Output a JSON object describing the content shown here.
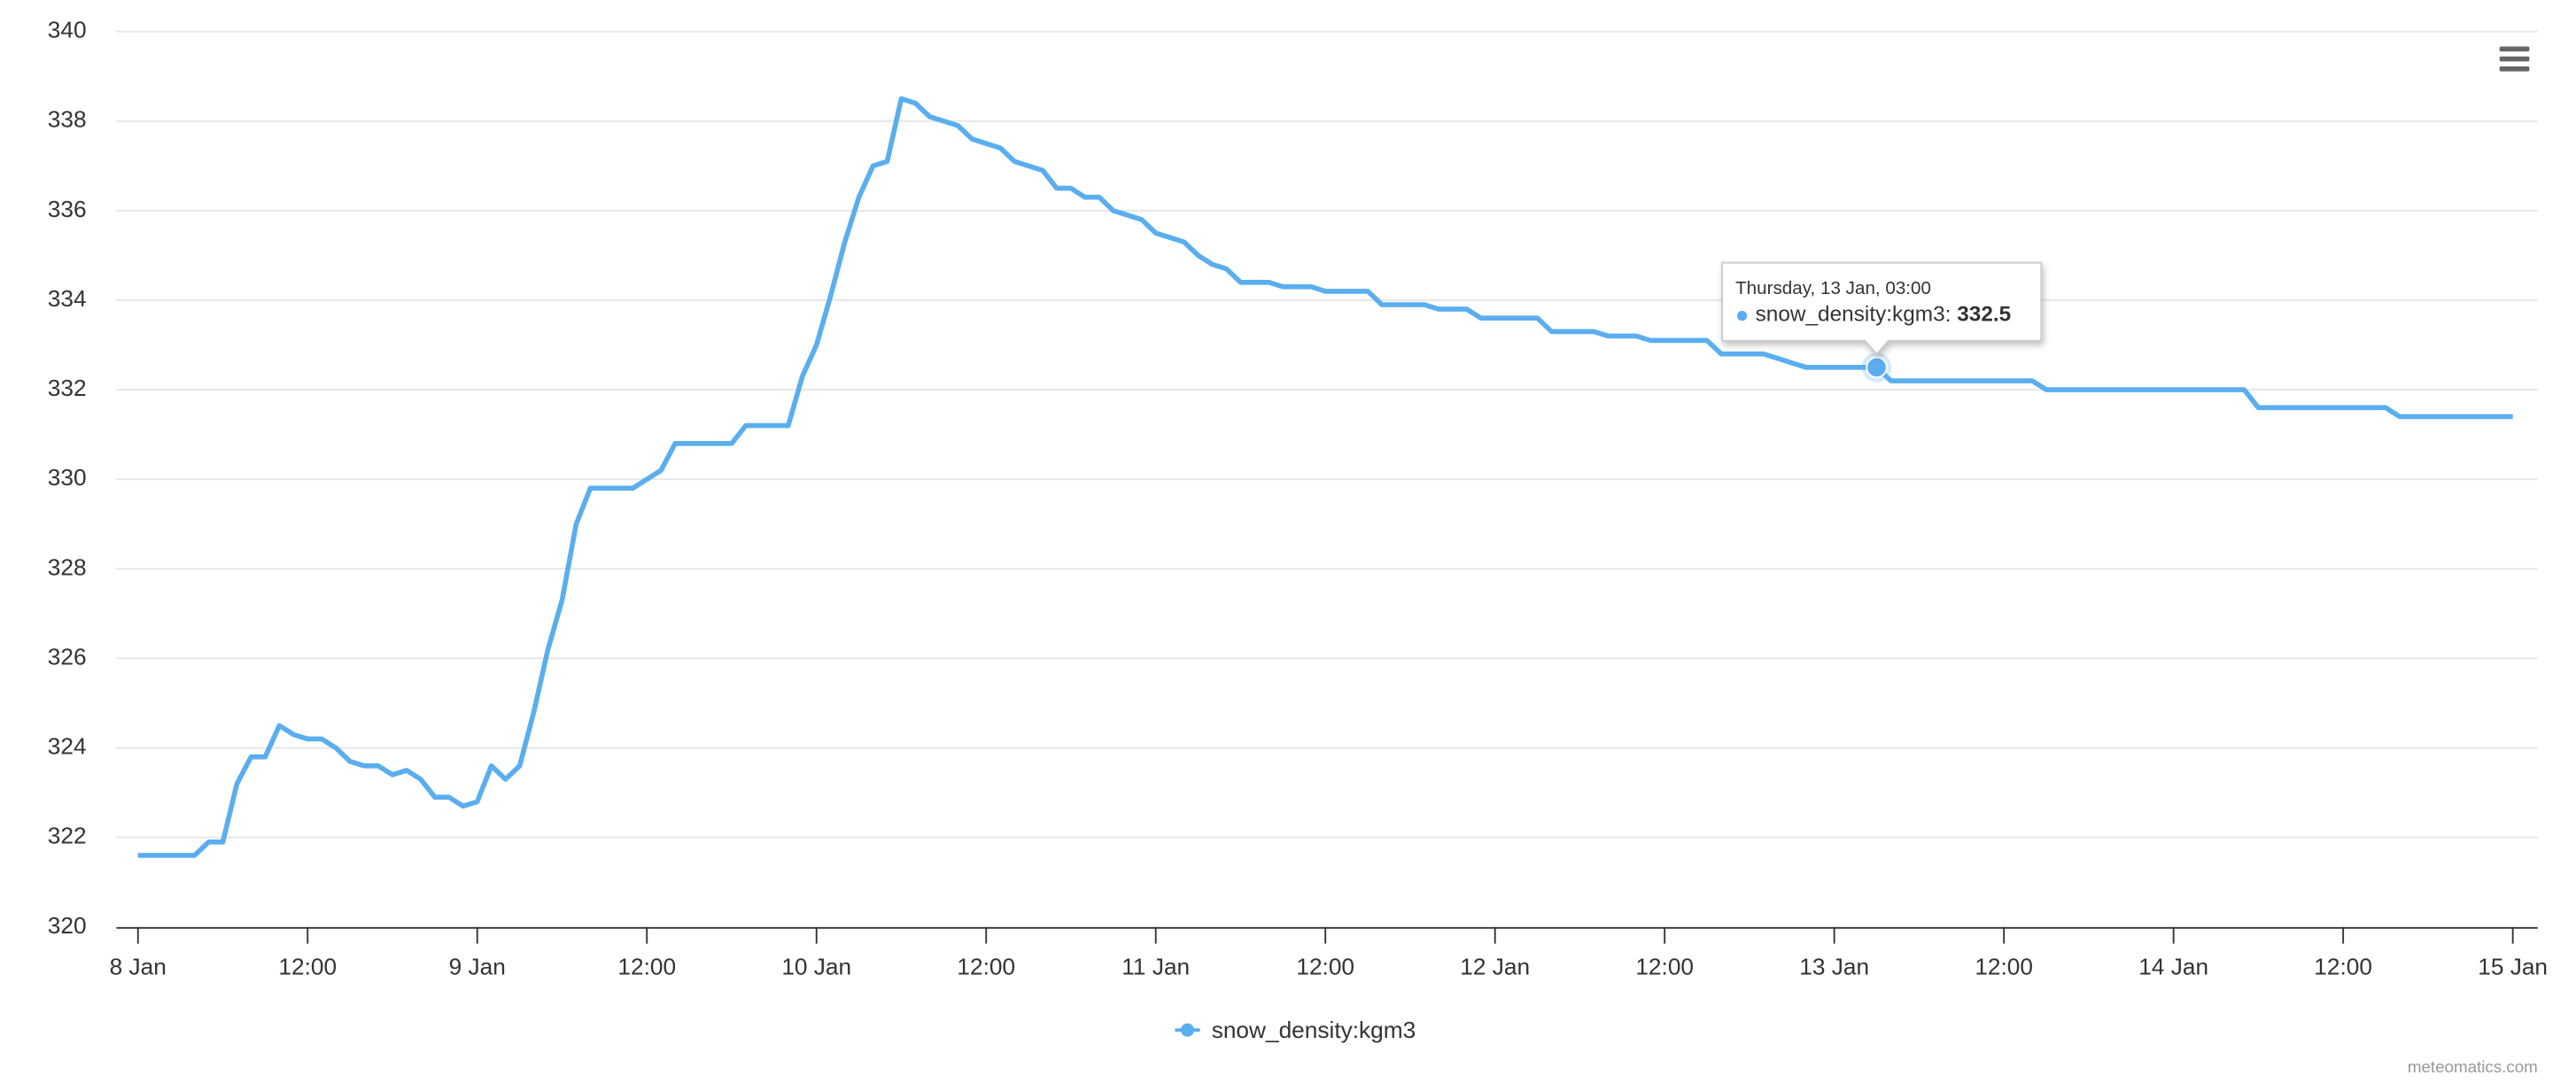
{
  "chart_data": {
    "type": "line",
    "x": [
      "8 Jan 00:00",
      "8 Jan 01:00",
      "8 Jan 02:00",
      "8 Jan 03:00",
      "8 Jan 04:00",
      "8 Jan 05:00",
      "8 Jan 06:00",
      "8 Jan 07:00",
      "8 Jan 08:00",
      "8 Jan 09:00",
      "8 Jan 10:00",
      "8 Jan 11:00",
      "8 Jan 12:00",
      "8 Jan 13:00",
      "8 Jan 14:00",
      "8 Jan 15:00",
      "8 Jan 16:00",
      "8 Jan 17:00",
      "8 Jan 18:00",
      "8 Jan 19:00",
      "8 Jan 20:00",
      "8 Jan 21:00",
      "8 Jan 22:00",
      "8 Jan 23:00",
      "9 Jan 00:00",
      "9 Jan 01:00",
      "9 Jan 02:00",
      "9 Jan 03:00",
      "9 Jan 04:00",
      "9 Jan 05:00",
      "9 Jan 06:00",
      "9 Jan 07:00",
      "9 Jan 08:00",
      "9 Jan 09:00",
      "9 Jan 10:00",
      "9 Jan 11:00",
      "9 Jan 12:00",
      "9 Jan 13:00",
      "9 Jan 14:00",
      "9 Jan 15:00",
      "9 Jan 16:00",
      "9 Jan 17:00",
      "9 Jan 18:00",
      "9 Jan 19:00",
      "9 Jan 20:00",
      "9 Jan 21:00",
      "9 Jan 22:00",
      "9 Jan 23:00",
      "10 Jan 00:00",
      "10 Jan 01:00",
      "10 Jan 02:00",
      "10 Jan 03:00",
      "10 Jan 04:00",
      "10 Jan 05:00",
      "10 Jan 06:00",
      "10 Jan 07:00",
      "10 Jan 08:00",
      "10 Jan 09:00",
      "10 Jan 10:00",
      "10 Jan 11:00",
      "10 Jan 12:00",
      "10 Jan 13:00",
      "10 Jan 14:00",
      "10 Jan 15:00",
      "10 Jan 16:00",
      "10 Jan 17:00",
      "10 Jan 18:00",
      "10 Jan 19:00",
      "10 Jan 20:00",
      "10 Jan 21:00",
      "10 Jan 22:00",
      "10 Jan 23:00",
      "11 Jan 00:00",
      "11 Jan 01:00",
      "11 Jan 02:00",
      "11 Jan 03:00",
      "11 Jan 04:00",
      "11 Jan 05:00",
      "11 Jan 06:00",
      "11 Jan 07:00",
      "11 Jan 08:00",
      "11 Jan 09:00",
      "11 Jan 10:00",
      "11 Jan 11:00",
      "11 Jan 12:00",
      "11 Jan 13:00",
      "11 Jan 14:00",
      "11 Jan 15:00",
      "11 Jan 16:00",
      "11 Jan 17:00",
      "11 Jan 18:00",
      "11 Jan 19:00",
      "11 Jan 20:00",
      "11 Jan 21:00",
      "11 Jan 22:00",
      "11 Jan 23:00",
      "12 Jan 00:00",
      "12 Jan 01:00",
      "12 Jan 02:00",
      "12 Jan 03:00",
      "12 Jan 04:00",
      "12 Jan 05:00",
      "12 Jan 06:00",
      "12 Jan 07:00",
      "12 Jan 08:00",
      "12 Jan 09:00",
      "12 Jan 10:00",
      "12 Jan 11:00",
      "12 Jan 12:00",
      "12 Jan 13:00",
      "12 Jan 14:00",
      "12 Jan 15:00",
      "12 Jan 16:00",
      "12 Jan 17:00",
      "12 Jan 18:00",
      "12 Jan 19:00",
      "12 Jan 20:00",
      "12 Jan 21:00",
      "12 Jan 22:00",
      "12 Jan 23:00",
      "13 Jan 00:00",
      "13 Jan 01:00",
      "13 Jan 02:00",
      "13 Jan 03:00",
      "13 Jan 04:00",
      "13 Jan 05:00",
      "13 Jan 06:00",
      "13 Jan 07:00",
      "13 Jan 08:00",
      "13 Jan 09:00",
      "13 Jan 10:00",
      "13 Jan 11:00",
      "13 Jan 12:00",
      "13 Jan 13:00",
      "13 Jan 14:00",
      "13 Jan 15:00",
      "13 Jan 16:00",
      "13 Jan 17:00",
      "13 Jan 18:00",
      "13 Jan 19:00",
      "13 Jan 20:00",
      "13 Jan 21:00",
      "13 Jan 22:00",
      "13 Jan 23:00",
      "14 Jan 00:00",
      "14 Jan 01:00",
      "14 Jan 02:00",
      "14 Jan 03:00",
      "14 Jan 04:00",
      "14 Jan 05:00",
      "14 Jan 06:00",
      "14 Jan 07:00",
      "14 Jan 08:00",
      "14 Jan 09:00",
      "14 Jan 10:00",
      "14 Jan 11:00",
      "14 Jan 12:00",
      "14 Jan 13:00",
      "14 Jan 14:00",
      "14 Jan 15:00",
      "14 Jan 16:00",
      "14 Jan 17:00",
      "14 Jan 18:00",
      "14 Jan 19:00",
      "14 Jan 20:00",
      "14 Jan 21:00",
      "14 Jan 22:00",
      "14 Jan 23:00",
      "15 Jan 00:00"
    ],
    "series": [
      {
        "name": "snow_density:kgm3",
        "color": "#5aaeef",
        "values": [
          321.6,
          321.6,
          321.6,
          321.6,
          321.6,
          321.9,
          321.9,
          323.2,
          323.8,
          323.8,
          324.5,
          324.3,
          324.2,
          324.2,
          324.0,
          323.7,
          323.6,
          323.6,
          323.4,
          323.5,
          323.3,
          322.9,
          322.9,
          322.7,
          322.8,
          323.6,
          323.3,
          323.6,
          324.8,
          326.2,
          327.3,
          329.0,
          329.8,
          329.8,
          329.8,
          329.8,
          330.0,
          330.2,
          330.8,
          330.8,
          330.8,
          330.8,
          330.8,
          331.2,
          331.2,
          331.2,
          331.2,
          332.3,
          333.0,
          334.1,
          335.3,
          336.3,
          337.0,
          337.1,
          338.5,
          338.4,
          338.1,
          338.0,
          337.9,
          337.6,
          337.5,
          337.4,
          337.1,
          337.0,
          336.9,
          336.5,
          336.5,
          336.3,
          336.3,
          336.0,
          335.9,
          335.8,
          335.5,
          335.4,
          335.3,
          335.0,
          334.8,
          334.7,
          334.4,
          334.4,
          334.4,
          334.3,
          334.3,
          334.3,
          334.2,
          334.2,
          334.2,
          334.2,
          333.9,
          333.9,
          333.9,
          333.9,
          333.8,
          333.8,
          333.8,
          333.6,
          333.6,
          333.6,
          333.6,
          333.6,
          333.3,
          333.3,
          333.3,
          333.3,
          333.2,
          333.2,
          333.2,
          333.1,
          333.1,
          333.1,
          333.1,
          333.1,
          332.8,
          332.8,
          332.8,
          332.8,
          332.7,
          332.6,
          332.5,
          332.5,
          332.5,
          332.5,
          332.5,
          332.5,
          332.2,
          332.2,
          332.2,
          332.2,
          332.2,
          332.2,
          332.2,
          332.2,
          332.2,
          332.2,
          332.2,
          332.0,
          332.0,
          332.0,
          332.0,
          332.0,
          332.0,
          332.0,
          332.0,
          332.0,
          332.0,
          332.0,
          332.0,
          332.0,
          332.0,
          332.0,
          331.6,
          331.6,
          331.6,
          331.6,
          331.6,
          331.6,
          331.6,
          331.6,
          331.6,
          331.6,
          331.4,
          331.4,
          331.4,
          331.4,
          331.4,
          331.4,
          331.4,
          331.4,
          331.4
        ]
      }
    ],
    "xlim": [
      "8 Jan 00:00",
      "15 Jan 00:00"
    ],
    "xticks": [
      {
        "value": "8 Jan 00:00",
        "label": "8 Jan"
      },
      {
        "value": "8 Jan 12:00",
        "label": "12:00"
      },
      {
        "value": "9 Jan 00:00",
        "label": "9 Jan"
      },
      {
        "value": "9 Jan 12:00",
        "label": "12:00"
      },
      {
        "value": "10 Jan 00:00",
        "label": "10 Jan"
      },
      {
        "value": "10 Jan 12:00",
        "label": "12:00"
      },
      {
        "value": "11 Jan 00:00",
        "label": "11 Jan"
      },
      {
        "value": "11 Jan 12:00",
        "label": "12:00"
      },
      {
        "value": "12 Jan 00:00",
        "label": "12 Jan"
      },
      {
        "value": "12 Jan 12:00",
        "label": "12:00"
      },
      {
        "value": "13 Jan 00:00",
        "label": "13 Jan"
      },
      {
        "value": "13 Jan 12:00",
        "label": "12:00"
      },
      {
        "value": "14 Jan 00:00",
        "label": "14 Jan"
      },
      {
        "value": "14 Jan 12:00",
        "label": "12:00"
      },
      {
        "value": "15 Jan 00:00",
        "label": "15 Jan"
      }
    ],
    "ylim": [
      320,
      340
    ],
    "yticks": [
      320,
      322,
      324,
      326,
      328,
      330,
      332,
      334,
      336,
      338,
      340
    ],
    "grid": true,
    "tooltip": {
      "header": "Thursday, 13 Jan, 03:00",
      "point": 123
    },
    "credit": "meteomatics.com"
  }
}
